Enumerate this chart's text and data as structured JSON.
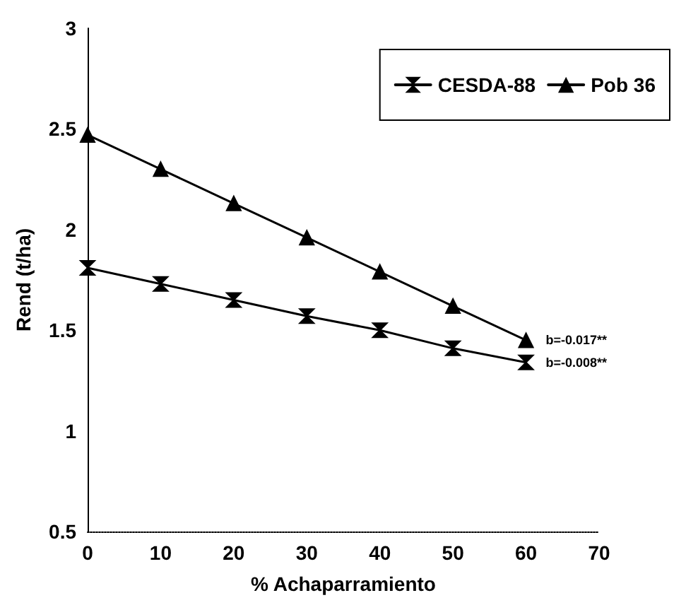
{
  "chart_data": {
    "type": "line",
    "xlabel": "% Achaparramiento",
    "ylabel": "Rend (t/ha)",
    "x": [
      0,
      10,
      20,
      30,
      40,
      50,
      60
    ],
    "series": [
      {
        "name": "CESDA-88",
        "color": "#000000",
        "marker": "cross",
        "values": [
          1.81,
          1.73,
          1.65,
          1.57,
          1.5,
          1.41,
          1.34
        ]
      },
      {
        "name": "Pob 36",
        "color": "#000000",
        "marker": "triangle",
        "values": [
          2.47,
          2.3,
          2.13,
          1.96,
          1.79,
          1.62,
          1.45
        ]
      }
    ],
    "xlim": [
      0,
      70
    ],
    "xticks": [
      0,
      10,
      20,
      30,
      40,
      50,
      60,
      70
    ],
    "ylim": [
      0.5,
      3
    ],
    "yticks": [
      0.5,
      1,
      1.5,
      2,
      2.5,
      3
    ],
    "grid": false,
    "legend": "top right",
    "line_style": "solid",
    "annotations": [
      {
        "text": "b=-0.017**",
        "x": 60,
        "y": 1.45
      },
      {
        "text": "b=-0.008**",
        "x": 60,
        "y": 1.34
      }
    ]
  }
}
